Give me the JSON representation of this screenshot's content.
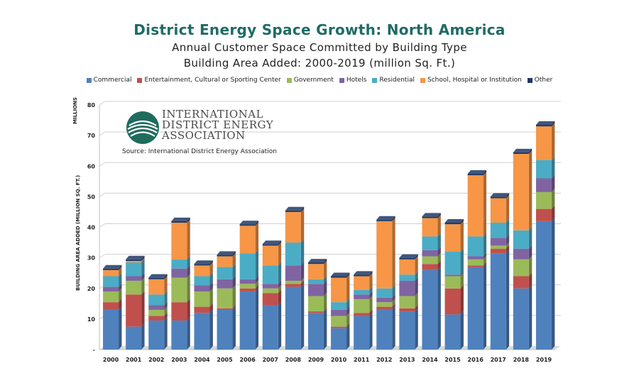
{
  "title": "District Energy Space Growth: North America",
  "subtitle_1": "Annual Customer Space Committed by Building Type",
  "subtitle_2": "Building Area Added: 2000-2019 (million Sq. Ft.)",
  "source": "Source: International District Energy Association",
  "logo": {
    "line1": "INTERNATIONAL",
    "line2": "DISTRICT ENERGY",
    "line3": "ASSOCIATION"
  },
  "colors": {
    "Commercial": "#4f81bd",
    "Entertainment": "#c0504d",
    "Government": "#9bbb59",
    "Hotels": "#8064a2",
    "Residential": "#4bacc6",
    "School": "#f79646",
    "Other": "#1f3864"
  },
  "chart_data": {
    "type": "bar",
    "stacked": true,
    "categories": [
      "2000",
      "2001",
      "2002",
      "2003",
      "2004",
      "2005",
      "2006",
      "2007",
      "2008",
      "2009",
      "2010",
      "2011",
      "2012",
      "2013",
      "2014",
      "2015",
      "2016",
      "2017",
      "2018",
      "2019"
    ],
    "series": [
      {
        "name": "Commercial",
        "values": [
          13,
          7.5,
          9.5,
          9.5,
          12,
          13,
          19,
          14.5,
          20.5,
          12,
          7,
          11,
          13,
          12.5,
          26,
          11.5,
          27,
          31.5,
          20,
          42
        ]
      },
      {
        "name": "Entertainment, Cultural or Sporting Center",
        "values": [
          2.5,
          10.5,
          1.5,
          6,
          2,
          0.5,
          1,
          4,
          1,
          0.5,
          0.5,
          1,
          1,
          1,
          2,
          8.5,
          0.5,
          1.5,
          4,
          4
        ]
      },
      {
        "name": "Government",
        "values": [
          3.5,
          4.5,
          2,
          8,
          5,
          6.5,
          1.5,
          1.5,
          1,
          5,
          3.5,
          4.5,
          1.5,
          4,
          2.5,
          4,
          2,
          1,
          5.5,
          5.5
        ]
      },
      {
        "name": "Hotels",
        "values": [
          1.5,
          1.5,
          1.5,
          3,
          2,
          3,
          1.5,
          1.5,
          5,
          4,
          2,
          1.5,
          1.5,
          5,
          2,
          0.5,
          1,
          2.5,
          3.5,
          4.5
        ]
      },
      {
        "name": "Residential",
        "values": [
          3.5,
          4.5,
          3.5,
          3,
          3,
          4,
          8.5,
          6,
          7.5,
          1.5,
          2.5,
          1.5,
          3,
          2,
          4.5,
          7.5,
          6.5,
          5,
          6,
          6
        ]
      },
      {
        "name": "School, Hospital or Institution",
        "values": [
          2,
          0.5,
          5,
          12,
          3.5,
          3.5,
          9,
          6.5,
          10,
          5,
          8,
          4.5,
          22,
          5,
          6,
          9,
          20,
          8,
          25,
          11
        ]
      },
      {
        "name": "Other",
        "values": [
          0.5,
          0.5,
          0.5,
          0.5,
          0.5,
          0.5,
          0.5,
          0.5,
          0.5,
          0.5,
          0.5,
          0.5,
          0.5,
          0.5,
          0.5,
          0.5,
          0.5,
          0.5,
          0.5,
          0.5
        ]
      }
    ],
    "ylabel": "BUILDING AREA ADDED (MILLION SQ. FT.)",
    "ylabel_top": "MILLIONS",
    "ylim": [
      0,
      80
    ],
    "yticks": [
      10,
      20,
      30,
      40,
      50,
      60,
      70,
      80
    ],
    "ytick_zero_label": "-",
    "grid": true,
    "legend": "top"
  }
}
